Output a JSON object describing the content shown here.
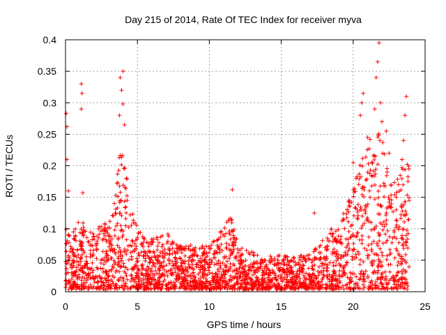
{
  "chart_data": {
    "type": "scatter",
    "title": "Day 215 of 2014, Rate Of TEC Index for receiver myva",
    "xlabel": "GPS time / hours",
    "ylabel": "ROTI / TECUs",
    "xlim": [
      0,
      25
    ],
    "ylim": [
      0,
      0.4
    ],
    "xticks": [
      0,
      5,
      10,
      15,
      20,
      25
    ],
    "yticks": [
      0,
      0.05,
      0.1,
      0.15,
      0.2,
      0.25,
      0.3,
      0.35,
      0.4
    ],
    "xtick_labels": [
      "0",
      "5",
      "10",
      "15",
      "20",
      "25"
    ],
    "ytick_labels": [
      "0",
      "0.05",
      "0.1",
      "0.15",
      "0.2",
      "0.25",
      "0.3",
      "0.35",
      "0.4"
    ],
    "grid": true,
    "marker": "+",
    "marker_color": "#ff0000",
    "data_range_hours": [
      0,
      23.9
    ],
    "envelope": {
      "description": "approximate upper envelope of ROTI vs hour",
      "x": [
        0.0,
        0.5,
        1.0,
        1.5,
        2.0,
        2.5,
        3.0,
        3.5,
        3.8,
        4.0,
        4.3,
        4.6,
        5.0,
        5.5,
        6.0,
        7.0,
        8.0,
        9.0,
        10.0,
        11.0,
        11.5,
        12.0,
        13.0,
        14.0,
        15.0,
        16.0,
        17.0,
        18.0,
        19.0,
        19.5,
        20.0,
        20.5,
        21.0,
        21.5,
        22.0,
        22.5,
        23.0,
        23.5,
        23.9
      ],
      "y": [
        0.1,
        0.09,
        0.12,
        0.1,
        0.09,
        0.12,
        0.1,
        0.16,
        0.24,
        0.22,
        0.17,
        0.13,
        0.1,
        0.08,
        0.08,
        0.09,
        0.07,
        0.07,
        0.07,
        0.1,
        0.12,
        0.07,
        0.06,
        0.05,
        0.06,
        0.05,
        0.06,
        0.08,
        0.12,
        0.13,
        0.16,
        0.2,
        0.23,
        0.27,
        0.24,
        0.2,
        0.17,
        0.2,
        0.2
      ]
    },
    "notable_points": [
      {
        "x": 0.05,
        "y": 0.283
      },
      {
        "x": 0.1,
        "y": 0.262
      },
      {
        "x": 0.1,
        "y": 0.21
      },
      {
        "x": 0.2,
        "y": 0.16
      },
      {
        "x": 1.1,
        "y": 0.33
      },
      {
        "x": 1.15,
        "y": 0.315
      },
      {
        "x": 1.1,
        "y": 0.29
      },
      {
        "x": 1.2,
        "y": 0.157
      },
      {
        "x": 3.8,
        "y": 0.34
      },
      {
        "x": 4.0,
        "y": 0.35
      },
      {
        "x": 3.9,
        "y": 0.32
      },
      {
        "x": 4.0,
        "y": 0.298
      },
      {
        "x": 3.75,
        "y": 0.28
      },
      {
        "x": 4.1,
        "y": 0.265
      },
      {
        "x": 11.6,
        "y": 0.162
      },
      {
        "x": 17.3,
        "y": 0.125
      },
      {
        "x": 20.0,
        "y": 0.205
      },
      {
        "x": 20.2,
        "y": 0.18
      },
      {
        "x": 20.6,
        "y": 0.3
      },
      {
        "x": 20.7,
        "y": 0.315
      },
      {
        "x": 20.5,
        "y": 0.28
      },
      {
        "x": 21.0,
        "y": 0.245
      },
      {
        "x": 21.5,
        "y": 0.29
      },
      {
        "x": 21.6,
        "y": 0.34
      },
      {
        "x": 21.7,
        "y": 0.365
      },
      {
        "x": 21.8,
        "y": 0.395
      },
      {
        "x": 21.9,
        "y": 0.3
      },
      {
        "x": 22.0,
        "y": 0.27
      },
      {
        "x": 22.3,
        "y": 0.255
      },
      {
        "x": 22.5,
        "y": 0.22
      },
      {
        "x": 23.5,
        "y": 0.24
      },
      {
        "x": 23.6,
        "y": 0.28
      },
      {
        "x": 23.7,
        "y": 0.31
      },
      {
        "x": 23.4,
        "y": 0.21
      }
    ]
  }
}
